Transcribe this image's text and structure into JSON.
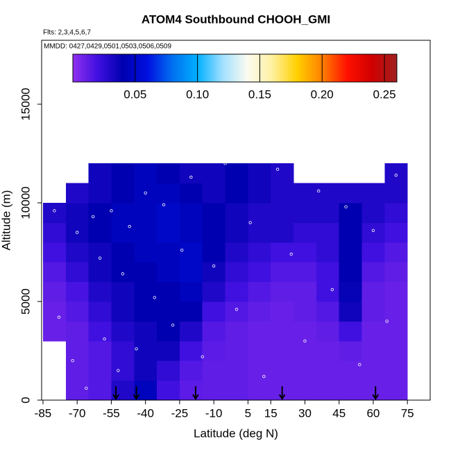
{
  "chart_data": {
    "type": "heatmap",
    "title": "ATOM4 Southbound CHOOH_GMI",
    "subtitle": "Flts: 2,3,4,5,6,7",
    "note": "MMDD: 0427,0429,0501,0503,0506,0509",
    "xlabel": "Latitude (deg N)",
    "ylabel": "Altitude (m)",
    "xlim": [
      -85.6,
      85
    ],
    "ylim": [
      0,
      18240
    ],
    "xticks": [
      -85,
      -70,
      -55,
      -40,
      -25,
      -10,
      5,
      15,
      30,
      45,
      60,
      75
    ],
    "yticks": [
      0,
      5000,
      10000,
      15000
    ],
    "clim": [
      0,
      0.26
    ],
    "cticks": [
      0.05,
      {
        "value": 0.1,
        "label": "0.10"
      },
      0.15,
      {
        "value": 0.2,
        "label": "0.20"
      },
      0.25
    ],
    "colors": [
      "#8f30f0",
      "#4010e0",
      "#0000b0",
      "#0010e0",
      "#0070f0",
      "#00b0ff",
      "#a0e0ff",
      "#fbfbf0",
      "#fff0a0",
      "#ffd000",
      "#ff8000",
      "#ff1000",
      "#d00000",
      "#a02020"
    ],
    "lat_edges": [
      -85,
      -75,
      -65,
      -55,
      -45,
      -35,
      -25,
      -15,
      -5,
      5,
      15,
      25,
      35,
      45,
      55,
      65,
      75
    ],
    "alt_edges": [
      0,
      1000,
      2000,
      3000,
      4000,
      5000,
      6000,
      7000,
      8000,
      9000,
      10000,
      11000,
      12000
    ],
    "z": [
      [
        null,
        0.012,
        0.015,
        0.03,
        0.045,
        0.02,
        0.013,
        0.012,
        0.012,
        0.01,
        0.01,
        0.01,
        0.01,
        0.01,
        0.01,
        0.01
      ],
      [
        null,
        0.012,
        0.015,
        0.025,
        0.035,
        0.025,
        0.015,
        0.012,
        0.012,
        0.01,
        0.01,
        0.01,
        0.01,
        0.01,
        0.01,
        0.01
      ],
      [
        null,
        0.012,
        0.015,
        0.025,
        0.035,
        0.035,
        0.02,
        0.013,
        0.012,
        0.01,
        0.01,
        0.01,
        0.01,
        0.012,
        0.01,
        0.01
      ],
      [
        0.01,
        0.012,
        0.02,
        0.03,
        0.035,
        0.04,
        0.03,
        0.015,
        0.012,
        0.01,
        0.01,
        0.01,
        0.012,
        0.02,
        0.01,
        0.01
      ],
      [
        0.01,
        0.015,
        0.025,
        0.035,
        0.04,
        0.04,
        0.04,
        0.02,
        0.015,
        0.012,
        0.01,
        0.012,
        0.015,
        0.035,
        0.012,
        0.01
      ],
      [
        0.012,
        0.018,
        0.03,
        0.035,
        0.04,
        0.04,
        0.045,
        0.03,
        0.02,
        0.015,
        0.012,
        0.012,
        0.02,
        0.038,
        0.012,
        0.01
      ],
      [
        0.015,
        0.025,
        0.035,
        0.04,
        0.04,
        0.045,
        0.05,
        0.035,
        0.025,
        0.02,
        0.015,
        0.015,
        0.02,
        0.04,
        0.015,
        0.012
      ],
      [
        0.02,
        0.03,
        0.035,
        0.04,
        0.045,
        0.045,
        0.05,
        0.04,
        0.03,
        0.025,
        0.02,
        0.02,
        0.025,
        0.04,
        0.02,
        0.015
      ],
      [
        0.025,
        0.035,
        0.04,
        0.045,
        0.045,
        0.05,
        0.045,
        0.04,
        0.035,
        0.03,
        0.03,
        0.025,
        0.025,
        0.04,
        0.025,
        0.02
      ],
      [
        0.03,
        0.035,
        0.04,
        0.045,
        0.045,
        0.05,
        0.045,
        0.04,
        0.035,
        0.03,
        0.03,
        0.03,
        0.03,
        0.04,
        0.03,
        0.025
      ],
      [
        null,
        0.03,
        0.035,
        0.04,
        0.045,
        0.045,
        0.04,
        0.035,
        0.04,
        0.035,
        0.03,
        0.03,
        0.03,
        0.03,
        0.03,
        0.03
      ],
      [
        null,
        null,
        0.035,
        0.04,
        0.045,
        0.04,
        0.035,
        0.035,
        0.04,
        0.035,
        0.03,
        null,
        null,
        null,
        null,
        0.03
      ]
    ],
    "obs_lat": [
      -80,
      -78,
      -72,
      -70,
      -66,
      -63,
      -60,
      -58,
      -55,
      -52,
      -50,
      -47,
      -44,
      -40,
      -36,
      -32,
      -28,
      -24,
      -20,
      -15,
      -10,
      -5,
      0,
      6,
      12,
      18,
      24,
      30,
      36,
      42,
      48,
      54,
      60,
      66,
      70
    ],
    "obs_alt": [
      9600,
      4200,
      2000,
      8500,
      600,
      9300,
      7200,
      3100,
      9600,
      1500,
      6400,
      8800,
      2600,
      10500,
      5200,
      9900,
      3800,
      7600,
      11300,
      2200,
      6800,
      12000,
      4600,
      9000,
      1200,
      11700,
      7400,
      3000,
      10600,
      5600,
      9800,
      1800,
      8600,
      4000,
      11400
    ],
    "arrows": [
      -53,
      -44,
      -18,
      20,
      61
    ]
  }
}
